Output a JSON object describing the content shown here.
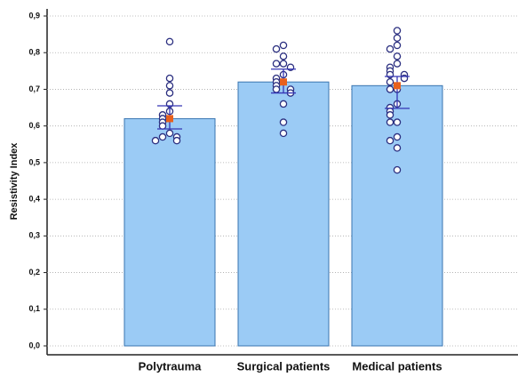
{
  "chart_data": {
    "type": "bar",
    "y_label": "Resistivity Index",
    "categories": [
      "Polytrauma",
      "Surgical patients",
      "Medical patients"
    ],
    "values": [
      0.62,
      0.72,
      0.71
    ],
    "ci_low": [
      0.592,
      0.69,
      0.648
    ],
    "ci_high": [
      0.655,
      0.755,
      0.735
    ],
    "points": [
      [
        0.83,
        0.73,
        0.71,
        0.69,
        0.66,
        0.64,
        0.63,
        0.62,
        0.61,
        0.6,
        0.58,
        0.57,
        0.57,
        0.56,
        0.56
      ],
      [
        0.82,
        0.81,
        0.79,
        0.77,
        0.77,
        0.76,
        0.74,
        0.73,
        0.72,
        0.71,
        0.7,
        0.7,
        0.69,
        0.66,
        0.61,
        0.58
      ],
      [
        0.86,
        0.84,
        0.82,
        0.81,
        0.79,
        0.77,
        0.76,
        0.75,
        0.74,
        0.74,
        0.73,
        0.72,
        0.7,
        0.7,
        0.66,
        0.65,
        0.64,
        0.63,
        0.61,
        0.61,
        0.57,
        0.56,
        0.54,
        0.48
      ]
    ],
    "color": "#9bcbf5",
    "ylim": [
      0,
      0.9
    ],
    "yticks": [
      {
        "value": 0,
        "label": "0,0"
      },
      {
        "value": 0.1,
        "label": "0,1"
      },
      {
        "value": 0.2,
        "label": "0,2"
      },
      {
        "value": 0.3,
        "label": "0,3"
      },
      {
        "value": 0.4,
        "label": "0,4"
      },
      {
        "value": 0.5,
        "label": "0,5"
      },
      {
        "value": 0.6,
        "label": "0,6"
      },
      {
        "value": 0.7,
        "label": "0,7"
      },
      {
        "value": 0.8,
        "label": "0,8"
      },
      {
        "value": 0.9,
        "label": "0,9"
      }
    ],
    "grid": true
  }
}
